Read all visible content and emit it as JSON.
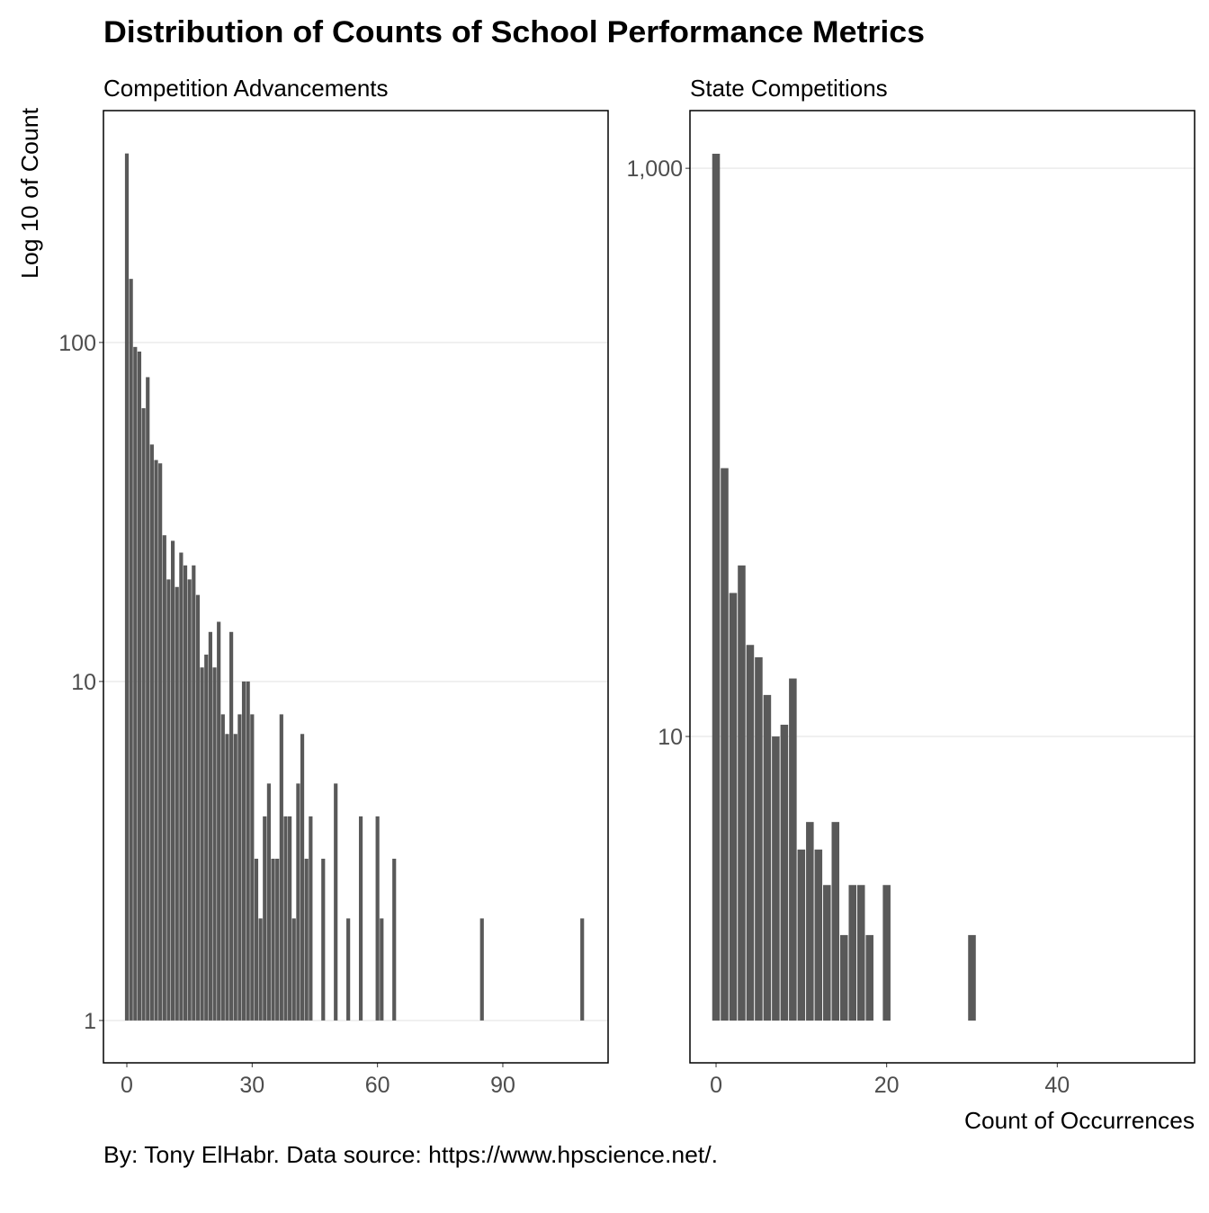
{
  "title": "Distribution of Counts of School Performance Metrics",
  "y_label": "Log 10 of Count",
  "x_label": "Count of Occurrences",
  "caption": "By: Tony ElHabr. Data source: https://www.hpscience.net/.",
  "chart_data": [
    {
      "type": "bar",
      "subtitle": "Competition Advancements",
      "color": "#595959",
      "log_y": true,
      "grid": true,
      "x": [
        0,
        1,
        2,
        3,
        4,
        5,
        6,
        7,
        8,
        9,
        10,
        11,
        12,
        13,
        14,
        15,
        16,
        17,
        18,
        19,
        20,
        21,
        22,
        23,
        24,
        25,
        26,
        27,
        28,
        29,
        30,
        31,
        32,
        33,
        34,
        35,
        36,
        37,
        38,
        39,
        40,
        41,
        42,
        43,
        44,
        47,
        50,
        53,
        56,
        60,
        61,
        64,
        85,
        109
      ],
      "values": [
        361,
        154,
        97,
        94,
        64,
        79,
        50,
        45,
        44,
        27,
        20,
        26,
        19,
        24,
        22,
        20,
        22,
        18,
        11,
        12,
        14,
        11,
        15,
        8,
        7,
        14,
        7,
        8,
        10,
        10,
        8,
        3,
        2,
        4,
        5,
        3,
        3,
        8,
        4,
        4,
        2,
        5,
        7,
        3,
        4,
        3,
        5,
        2,
        4,
        4,
        2,
        3,
        2,
        2
      ],
      "xlim": [
        -5.6,
        115.2
      ],
      "xticks": [
        0,
        30,
        60,
        90
      ],
      "ylim": [
        0.75,
        483
      ],
      "yticks": [
        1,
        10,
        100
      ]
    },
    {
      "type": "bar",
      "subtitle": "State Competitions",
      "color": "#595959",
      "log_y": true,
      "grid": true,
      "x": [
        0,
        1,
        2,
        3,
        4,
        5,
        6,
        7,
        8,
        9,
        10,
        11,
        12,
        13,
        14,
        15,
        16,
        17,
        18,
        20,
        30
      ],
      "values": [
        1125,
        88,
        32,
        40,
        21,
        19,
        14,
        10,
        11,
        16,
        4,
        5,
        4,
        3,
        5,
        2,
        3,
        3,
        2,
        3,
        2
      ],
      "xlim": [
        -3.06,
        56.1
      ],
      "xticks": [
        0,
        20,
        40
      ],
      "ylim": [
        0.71,
        1596
      ],
      "yticks": [
        10,
        {
          "value": 1000,
          "label": "1,000"
        }
      ]
    }
  ]
}
